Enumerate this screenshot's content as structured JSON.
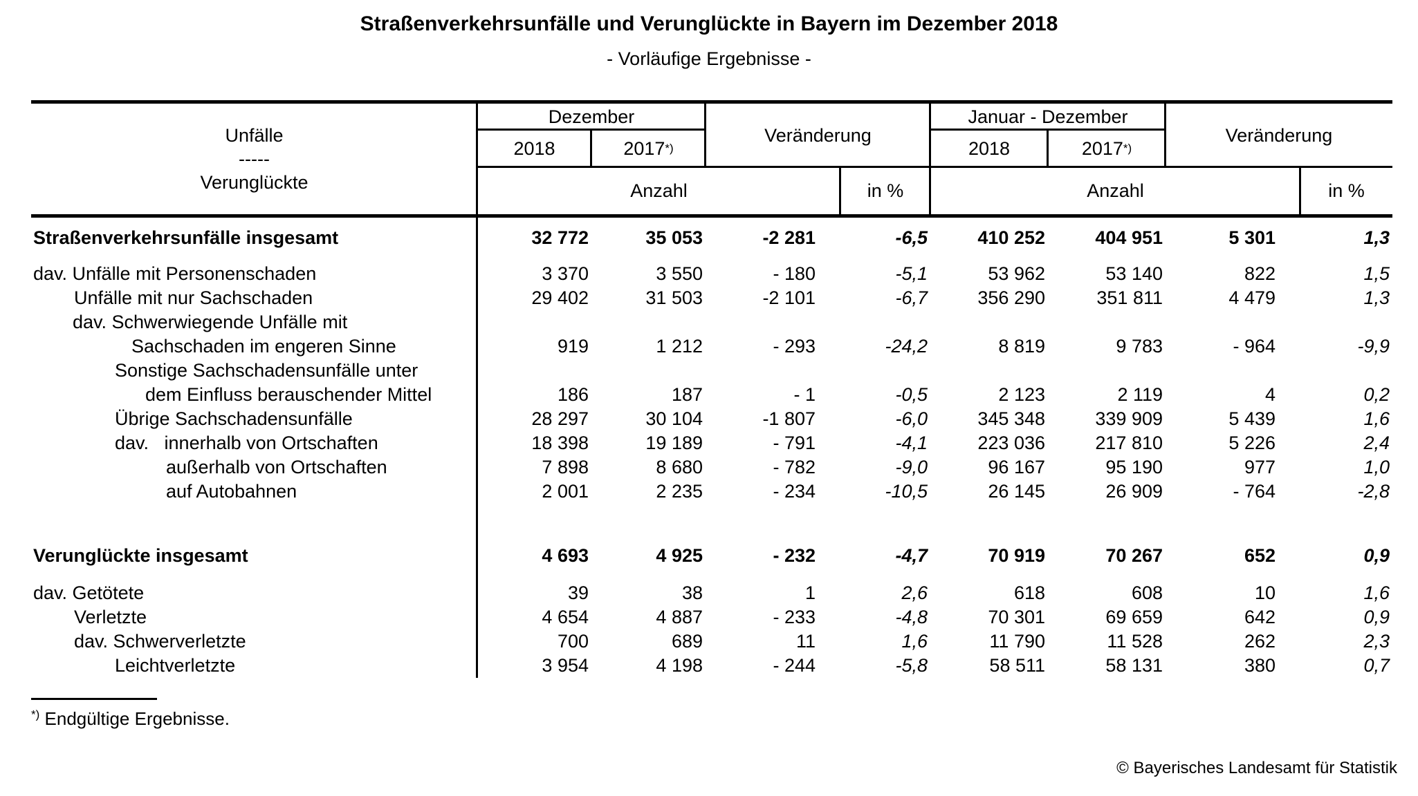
{
  "title": "Straßenverkehrsunfälle und Verunglückte in Bayern im Dezember 2018",
  "subtitle": "- Vorläufige Ergebnisse -",
  "header": {
    "row_label": {
      "line1": "Unfälle",
      "line2": "-----",
      "line3": "Verunglückte"
    },
    "groups": {
      "dezember": "Dezember",
      "veraenderung": "Veränderung",
      "januar_dezember": "Januar - Dezember"
    },
    "years": {
      "y2018": "2018",
      "y2017": "2017",
      "footnote_marker": "*)"
    },
    "measures": {
      "anzahl": "Anzahl",
      "in_percent": "in %"
    }
  },
  "rows": [
    {
      "label": "Straßenverkehrsunfälle insgesamt",
      "indent": 3,
      "bold": true,
      "space_before": 20,
      "values": [
        "32 772",
        "35 053",
        "-2 281",
        "-6,5",
        "410 252",
        "404 951",
        "5 301",
        "1,3"
      ]
    },
    {
      "label": "dav. Unfälle mit Personenschaden",
      "indent": 3,
      "bold": false,
      "space_before": 16,
      "values": [
        "3 370",
        "3 550",
        "- 180",
        "-5,1",
        "53 962",
        "53 140",
        "822",
        "1,5"
      ]
    },
    {
      "label": "Unfälle mit nur Sachschaden",
      "indent": 62,
      "bold": false,
      "space_before": 0,
      "values": [
        "29 402",
        "31 503",
        "-2 101",
        "-6,7",
        "356 290",
        "351 811",
        "4 479",
        "1,3"
      ]
    },
    {
      "label": "dav. Schwerwiegende Unfälle mit",
      "indent": 60,
      "bold": false,
      "space_before": 0,
      "values": [
        "",
        "",
        "",
        "",
        "",
        "",
        "",
        ""
      ]
    },
    {
      "label": "Sachschaden im engeren Sinne",
      "indent": 145,
      "bold": false,
      "space_before": 0,
      "values": [
        "919",
        "1 212",
        "- 293",
        "-24,2",
        "8 819",
        "9 783",
        "- 964",
        "-9,9"
      ]
    },
    {
      "label": "Sonstige Sachschadensunfälle unter",
      "indent": 121,
      "bold": false,
      "space_before": 0,
      "values": [
        "",
        "",
        "",
        "",
        "",
        "",
        "",
        ""
      ]
    },
    {
      "label": "dem Einfluss berauschender Mittel",
      "indent": 165,
      "bold": false,
      "space_before": 0,
      "values": [
        "186",
        "187",
        "- 1",
        "-0,5",
        "2 123",
        "2 119",
        "4",
        "0,2"
      ]
    },
    {
      "label": "Übrige Sachschadensunfälle",
      "indent": 121,
      "bold": false,
      "space_before": 0,
      "values": [
        "28 297",
        "30 104",
        "-1 807",
        "-6,0",
        "345 348",
        "339 909",
        "5 439",
        "1,6"
      ]
    },
    {
      "label": "dav.   innerhalb von Ortschaften",
      "indent": 121,
      "bold": false,
      "space_before": 0,
      "values": [
        "18 398",
        "19 189",
        "- 791",
        "-4,1",
        "223 036",
        "217 810",
        "5 226",
        "2,4"
      ]
    },
    {
      "label": "außerhalb von Ortschaften",
      "indent": 195,
      "bold": false,
      "space_before": 0,
      "values": [
        "7 898",
        "8 680",
        "- 782",
        "-9,0",
        "96 167",
        "95 190",
        "977",
        "1,0"
      ]
    },
    {
      "label": "auf Autobahnen",
      "indent": 195,
      "bold": false,
      "space_before": 0,
      "values": [
        "2 001",
        "2 235",
        "- 234",
        "-10,5",
        "26 145",
        "26 909",
        "- 764",
        "-2,8"
      ]
    },
    {
      "label": "Verunglückte insgesamt",
      "indent": 3,
      "bold": true,
      "space_before": 56,
      "values": [
        "4 693",
        "4 925",
        "- 232",
        "-4,7",
        "70 919",
        "70 267",
        "652",
        "0,9"
      ]
    },
    {
      "label": "dav. Getötete",
      "indent": 3,
      "bold": false,
      "space_before": 18,
      "values": [
        "39",
        "38",
        "1",
        "2,6",
        "618",
        "608",
        "10",
        "1,6"
      ]
    },
    {
      "label": "Verletzte",
      "indent": 62,
      "bold": false,
      "space_before": 0,
      "values": [
        "4 654",
        "4 887",
        "- 233",
        "-4,8",
        "70 301",
        "69 659",
        "642",
        "0,9"
      ]
    },
    {
      "label": "dav. Schwerverletzte",
      "indent": 62,
      "bold": false,
      "space_before": 0,
      "values": [
        "700",
        "689",
        "11",
        "1,6",
        "11 790",
        "11 528",
        "262",
        "2,3"
      ]
    },
    {
      "label": "Leichtverletzte",
      "indent": 121,
      "bold": false,
      "space_before": 0,
      "values": [
        "3 954",
        "4 198",
        "- 244",
        "-5,8",
        "58 511",
        "58 131",
        "380",
        "0,7"
      ]
    }
  ],
  "footnote": {
    "marker": "*)",
    "text": "Endgültige Ergebnisse."
  },
  "copyright": "© Bayerisches Landesamt für Statistik",
  "colors": {
    "text": "#000000",
    "background": "#ffffff"
  }
}
